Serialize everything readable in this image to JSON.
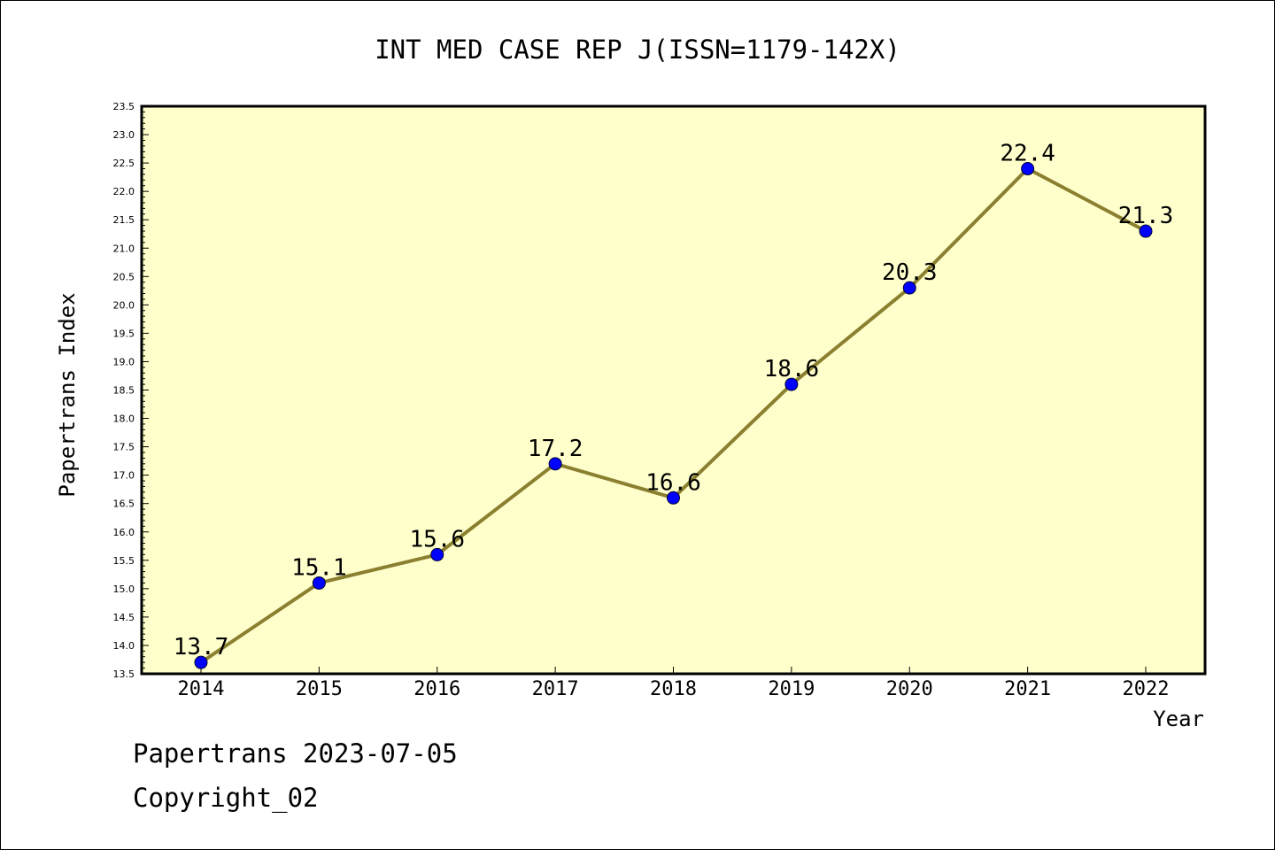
{
  "footer": {
    "line1": "Papertrans 2023-07-05",
    "line2": "Copyright_02"
  },
  "colors": {
    "plot_background": "#ffffcc",
    "line": "#8b8030",
    "marker": "#0000ff"
  },
  "chart_data": {
    "type": "line",
    "title": "INT MED CASE REP J(ISSN=1179-142X)",
    "xlabel": "Year",
    "ylabel": "Papertrans Index",
    "categories": [
      "2014",
      "2015",
      "2016",
      "2017",
      "2018",
      "2019",
      "2020",
      "2021",
      "2022"
    ],
    "series": [
      {
        "values": [
          13.7,
          15.1,
          15.6,
          17.2,
          16.6,
          18.6,
          20.3,
          22.4,
          21.3
        ],
        "labels": [
          "13.7",
          "15.1",
          "15.6",
          "17.2",
          "16.6",
          "18.6",
          "20.3",
          "22.4",
          "21.3"
        ]
      }
    ],
    "ylim": [
      13.5,
      23.5
    ],
    "ytick_step": 0.5,
    "grid": false,
    "legend": "none"
  }
}
